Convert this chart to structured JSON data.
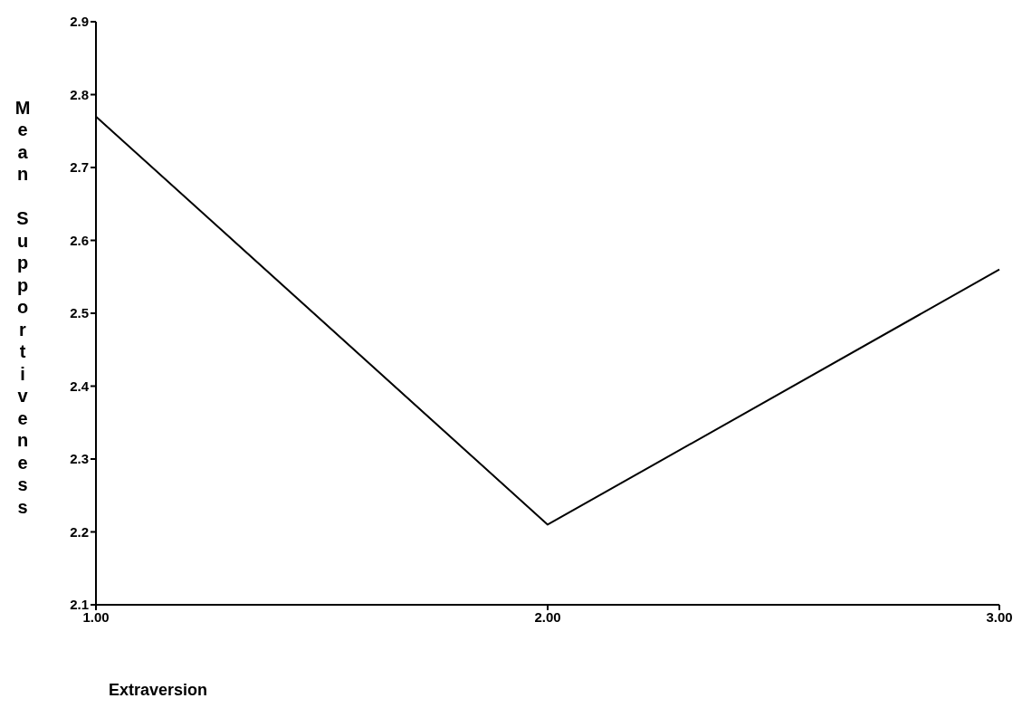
{
  "chart_data": {
    "type": "line",
    "xlabel": "Extraversion",
    "ylabel": "Mean Supportiveness",
    "categories": [
      "1.00",
      "2.00",
      "3.00"
    ],
    "series": [
      {
        "color": "#000000",
        "values": [
          2.77,
          2.21,
          2.56
        ]
      }
    ],
    "ylim": [
      2.1,
      2.9
    ],
    "yticks": [
      2.1,
      2.2,
      2.3,
      2.4,
      2.5,
      2.6,
      2.7,
      2.8,
      2.9
    ],
    "grid": false,
    "legend": false,
    "marker": "none",
    "line_style": "solid"
  }
}
